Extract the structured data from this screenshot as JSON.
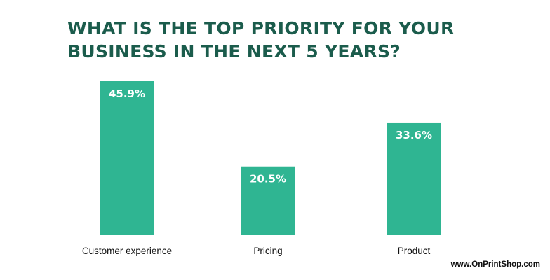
{
  "colors": {
    "title": "#1b5c4c",
    "bar": "#2fb592",
    "bar_label": "#ffffff",
    "text": "#111111"
  },
  "chart_data": {
    "type": "bar",
    "title": "WHAT IS THE TOP PRIORITY FOR YOUR BUSINESS IN THE NEXT 5 YEARS?",
    "categories": [
      "Customer experience",
      "Pricing",
      "Product"
    ],
    "values": [
      45.9,
      20.5,
      33.6
    ],
    "value_labels": [
      "45.9%",
      "20.5%",
      "33.6%"
    ],
    "xlabel": "",
    "ylabel": "",
    "ylim": [
      0,
      45.9
    ],
    "grid": false,
    "legend": "none"
  },
  "footer": {
    "website": "www.OnPrintShop.com"
  }
}
